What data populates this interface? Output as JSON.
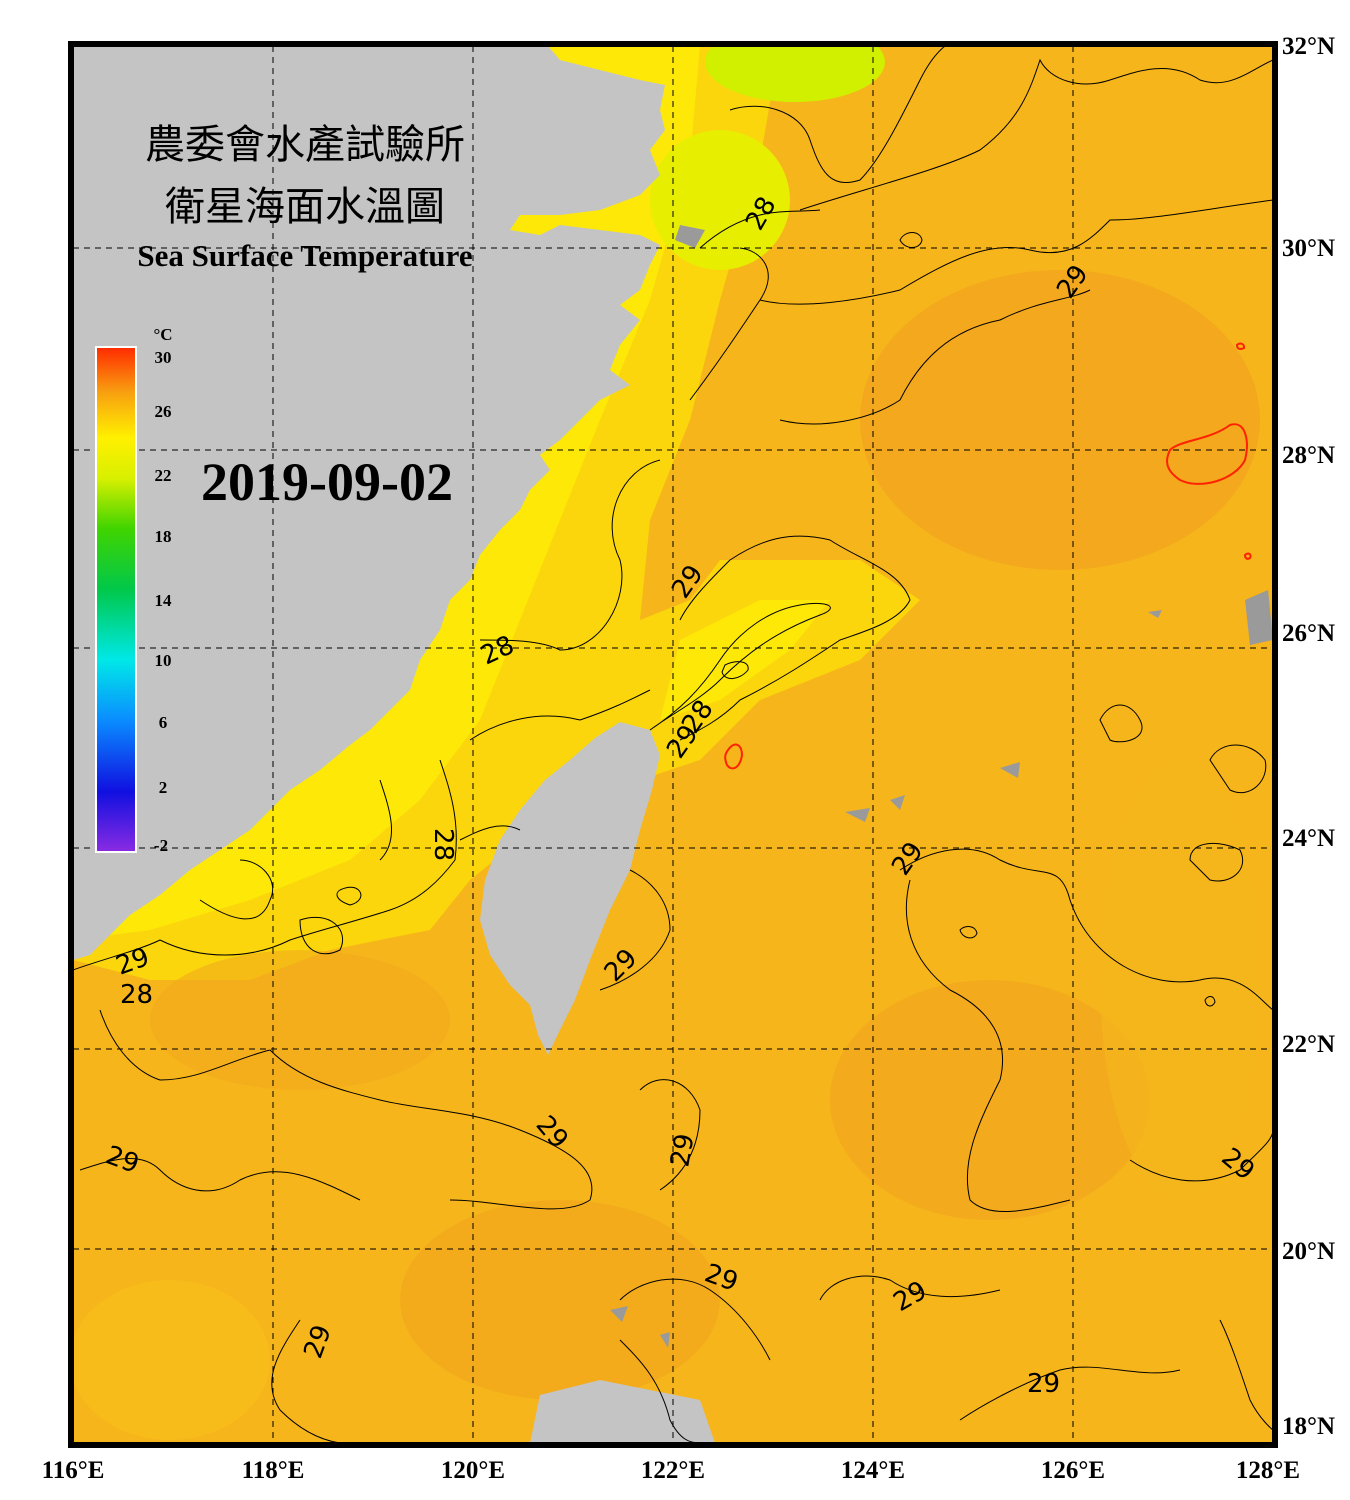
{
  "title_line1": "農委會水產試驗所",
  "title_line2": "衛星海面水溫圖",
  "title_en": "Sea Surface Temperature",
  "date": "2019-09-02",
  "colorbar": {
    "unit": "°C",
    "ticks": [
      "30",
      "26",
      "22",
      "18",
      "14",
      "10",
      "6",
      "2",
      "-2"
    ],
    "min": -2,
    "max": 30
  },
  "lon_labels": [
    "116°E",
    "118°E",
    "120°E",
    "122°E",
    "124°E",
    "126°E",
    "128°E"
  ],
  "lat_labels": [
    "32°N",
    "30°N",
    "28°N",
    "26°N",
    "24°N",
    "22°N",
    "20°N",
    "18°N"
  ],
  "contour_labels": [
    "28",
    "29",
    "29",
    "28",
    "29",
    "28",
    "29",
    "28",
    "29",
    "29",
    "28",
    "29",
    "29",
    "29",
    "29",
    "29",
    "29",
    "29",
    "29"
  ],
  "colors": {
    "land": "#c4c4c4",
    "sea_warm": "#f7b316",
    "sea_cool": "#ffe600",
    "contour": "#000000",
    "contour_30": "#ff2200",
    "frame": "#000000"
  }
}
